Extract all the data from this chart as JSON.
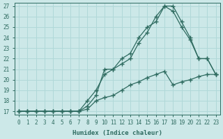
{
  "xlabel": "Humidex (Indice chaleur)",
  "ylabel": "",
  "xlim": [
    -0.5,
    23.5
  ],
  "ylim": [
    16.7,
    27.3
  ],
  "xticks": [
    0,
    1,
    2,
    3,
    4,
    5,
    6,
    7,
    8,
    9,
    10,
    11,
    12,
    13,
    14,
    15,
    16,
    17,
    18,
    19,
    20,
    21,
    22,
    23
  ],
  "yticks": [
    17,
    18,
    19,
    20,
    21,
    22,
    23,
    24,
    25,
    26,
    27
  ],
  "background_color": "#cce8e8",
  "grid_color": "#b0d8d8",
  "line_color": "#2e6b60",
  "line1_x": [
    0,
    1,
    2,
    3,
    4,
    5,
    6,
    7,
    8,
    9,
    10,
    11,
    12,
    13,
    14,
    15,
    16,
    17,
    18,
    19,
    20,
    21,
    22,
    23
  ],
  "line1_y": [
    17,
    17,
    17,
    17,
    17,
    17,
    17,
    17,
    17.5,
    18.5,
    21,
    21,
    21.5,
    22,
    23.5,
    24.5,
    26,
    27,
    26.5,
    25,
    23.8,
    22,
    22,
    20.5
  ],
  "line2_x": [
    0,
    1,
    2,
    3,
    4,
    5,
    6,
    7,
    8,
    9,
    10,
    11,
    12,
    13,
    14,
    15,
    16,
    17,
    18,
    19,
    20,
    21,
    22,
    23
  ],
  "line2_y": [
    17,
    17,
    17,
    17,
    17,
    17,
    17,
    17,
    18,
    19,
    20.5,
    21,
    22,
    22.5,
    24,
    25,
    25.5,
    27,
    27,
    25.5,
    24,
    22,
    22,
    20.5
  ],
  "line3_x": [
    0,
    1,
    2,
    3,
    4,
    5,
    6,
    7,
    8,
    9,
    10,
    11,
    12,
    13,
    14,
    15,
    16,
    17,
    18,
    19,
    20,
    21,
    22,
    23
  ],
  "line3_y": [
    17,
    17,
    17,
    17,
    17,
    17,
    17,
    17,
    17.2,
    18,
    18.3,
    18.5,
    19,
    19.5,
    19.8,
    20.2,
    20.5,
    20.8,
    19.5,
    19.8,
    20,
    20.3,
    20.5,
    20.5
  ],
  "marker": "+",
  "markersize": 4,
  "linewidth": 0.9
}
